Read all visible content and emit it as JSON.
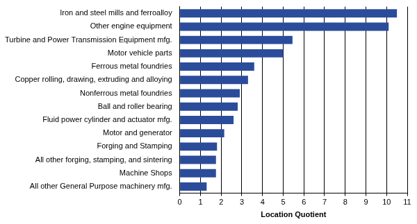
{
  "chart_data": {
    "type": "bar",
    "orientation": "horizontal",
    "x_label": "Location Quotient",
    "categories": [
      "Iron and steel mills and ferroalloy",
      "Other engine equipment",
      "Turbine and Power Transmission Equipment mfg.",
      "Motor vehicle parts",
      "Ferrous metal foundries",
      "Copper rolling, drawing, extruding and alloying",
      "Nonferrous metal foundries",
      "Ball and roller bearing",
      "Fluid power cylinder and actuator mfg.",
      "Motor and generator",
      "Forging and Stamping",
      "All other forging, stamping, and sintering",
      "Machine Shops",
      "All other General Purpose machinery mfg."
    ],
    "values": [
      10.5,
      10.1,
      5.45,
      5.0,
      3.6,
      3.3,
      2.9,
      2.8,
      2.6,
      2.15,
      1.8,
      1.75,
      1.75,
      1.3
    ],
    "color": "#2b4c9b",
    "xlim": [
      0,
      11
    ],
    "xticks": [
      0,
      1,
      2,
      3,
      4,
      5,
      6,
      7,
      8,
      9,
      10,
      11
    ],
    "grid": true
  }
}
